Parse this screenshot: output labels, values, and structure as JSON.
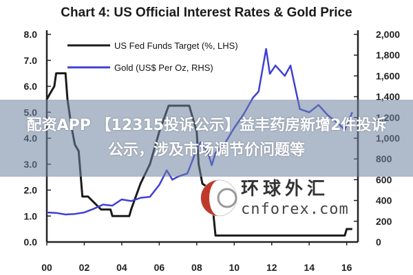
{
  "chart_data": {
    "type": "line",
    "title": "Chart 4: US Official Interest Rates & Gold Price",
    "x_ticks": [
      "00",
      "02",
      "04",
      "06",
      "08",
      "10",
      "12",
      "14",
      "16"
    ],
    "xlim": [
      2000.0,
      2016.6
    ],
    "y_left_ticks": [
      "8.0",
      "7.0",
      "6.0",
      "5.0",
      "4.0",
      "3.0",
      "2.0",
      "1.0",
      "0.0"
    ],
    "y_right_ticks": [
      "2,000",
      "1,800",
      "1,600",
      "1,400",
      "1,200",
      "1,000",
      "800",
      "600",
      "400",
      "200",
      "0"
    ],
    "ylim_left": [
      0,
      8
    ],
    "ylim_right": [
      0,
      2000
    ],
    "legend_position": "top-left",
    "series": [
      {
        "name": "US Fed Funds Target (%, LHS)",
        "axis": "left",
        "color": "#1a1a1a",
        "x": [
          2000.0,
          2000.2,
          2000.4,
          2000.5,
          2000.6,
          2000.8,
          2001.0,
          2001.1,
          2001.3,
          2001.5,
          2001.7,
          2001.9,
          2002.2,
          2002.9,
          2003.4,
          2003.5,
          2004.4,
          2004.5,
          2005.0,
          2005.5,
          2006.0,
          2006.5,
          2007.6,
          2007.8,
          2008.0,
          2008.1,
          2008.3,
          2008.8,
          2008.9,
          2009.0,
          2015.9,
          2016.0,
          2016.3
        ],
        "y": [
          5.5,
          5.75,
          6.0,
          6.5,
          6.5,
          6.5,
          6.5,
          5.5,
          4.5,
          3.75,
          3.5,
          1.75,
          1.75,
          1.25,
          1.25,
          1.0,
          1.0,
          1.25,
          2.25,
          3.0,
          4.25,
          5.25,
          5.25,
          4.75,
          4.25,
          3.0,
          2.25,
          2.0,
          1.0,
          0.25,
          0.25,
          0.5,
          0.5
        ]
      },
      {
        "name": "Gold (US$ Per Oz, RHS)",
        "axis": "right",
        "color": "#3f3fd6",
        "x": [
          2000.0,
          2000.5,
          2001.0,
          2001.5,
          2002.0,
          2002.5,
          2003.0,
          2003.5,
          2004.0,
          2004.5,
          2005.0,
          2005.5,
          2006.0,
          2006.4,
          2006.7,
          2007.0,
          2007.5,
          2008.0,
          2008.2,
          2008.6,
          2008.8,
          2009.0,
          2009.5,
          2010.0,
          2010.5,
          2011.0,
          2011.3,
          2011.7,
          2011.9,
          2012.2,
          2012.7,
          2013.0,
          2013.3,
          2013.5,
          2014.0,
          2014.5,
          2015.0,
          2015.5,
          2015.9,
          2016.3
        ],
        "y": [
          285,
          280,
          265,
          270,
          285,
          320,
          360,
          350,
          410,
          395,
          425,
          435,
          550,
          690,
          600,
          630,
          660,
          890,
          960,
          860,
          740,
          860,
          950,
          1100,
          1230,
          1390,
          1450,
          1860,
          1620,
          1700,
          1600,
          1700,
          1450,
          1280,
          1250,
          1320,
          1220,
          1150,
          1080,
          1250
        ]
      }
    ]
  },
  "watermark": {
    "chinese": "环球外汇",
    "latin": "cnforex.com"
  },
  "banner": {
    "text": "配资APP 【12315投诉公示】益丰药房新增2件投诉公示，涉及市场调节价问题等"
  }
}
